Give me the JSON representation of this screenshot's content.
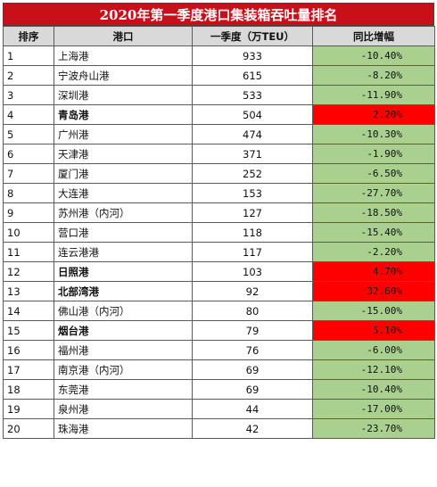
{
  "title": "2020年第一季度港口集装箱吞吐量排名",
  "headers": {
    "rank": "排序",
    "port": "港口",
    "value": "一季度（万TEU）",
    "change": "同比增幅"
  },
  "colors": {
    "title_bg": "#c8101b",
    "header_bg": "#d9d9d9",
    "decline_bg": "#a9d08e",
    "growth_bg": "#ff0000"
  },
  "rows": [
    {
      "rank": "1",
      "port": "上海港",
      "value": "933",
      "change": "-10.40%",
      "trend": "down"
    },
    {
      "rank": "2",
      "port": "宁波舟山港",
      "value": "615",
      "change": "-8.20%",
      "trend": "down"
    },
    {
      "rank": "3",
      "port": "深圳港",
      "value": "533",
      "change": "-11.90%",
      "trend": "down"
    },
    {
      "rank": "4",
      "port": "青岛港",
      "value": "504",
      "change": "2.20%",
      "trend": "up"
    },
    {
      "rank": "5",
      "port": "广州港",
      "value": "474",
      "change": "-10.30%",
      "trend": "down"
    },
    {
      "rank": "6",
      "port": "天津港",
      "value": "371",
      "change": "-1.90%",
      "trend": "down"
    },
    {
      "rank": "7",
      "port": "厦门港",
      "value": "252",
      "change": "-6.50%",
      "trend": "down"
    },
    {
      "rank": "8",
      "port": "大连港",
      "value": "153",
      "change": "-27.70%",
      "trend": "down"
    },
    {
      "rank": "9",
      "port": "苏州港（内河）",
      "value": "127",
      "change": "-18.50%",
      "trend": "down"
    },
    {
      "rank": "10",
      "port": "营口港",
      "value": "118",
      "change": "-15.40%",
      "trend": "down"
    },
    {
      "rank": "11",
      "port": "连云港港",
      "value": "117",
      "change": "-2.20%",
      "trend": "down"
    },
    {
      "rank": "12",
      "port": "日照港",
      "value": "103",
      "change": "4.70%",
      "trend": "up"
    },
    {
      "rank": "13",
      "port": "北部湾港",
      "value": "92",
      "change": "32.60%",
      "trend": "up"
    },
    {
      "rank": "14",
      "port": "佛山港（内河）",
      "value": "80",
      "change": "-15.00%",
      "trend": "down"
    },
    {
      "rank": "15",
      "port": "烟台港",
      "value": "79",
      "change": "5.10%",
      "trend": "up"
    },
    {
      "rank": "16",
      "port": "福州港",
      "value": "76",
      "change": "-6.00%",
      "trend": "down"
    },
    {
      "rank": "17",
      "port": "南京港（内河）",
      "value": "69",
      "change": "-12.10%",
      "trend": "down"
    },
    {
      "rank": "18",
      "port": "东莞港",
      "value": "69",
      "change": "-10.40%",
      "trend": "down"
    },
    {
      "rank": "19",
      "port": "泉州港",
      "value": "44",
      "change": "-17.00%",
      "trend": "down"
    },
    {
      "rank": "20",
      "port": "珠海港",
      "value": "42",
      "change": "-23.70%",
      "trend": "down"
    }
  ]
}
